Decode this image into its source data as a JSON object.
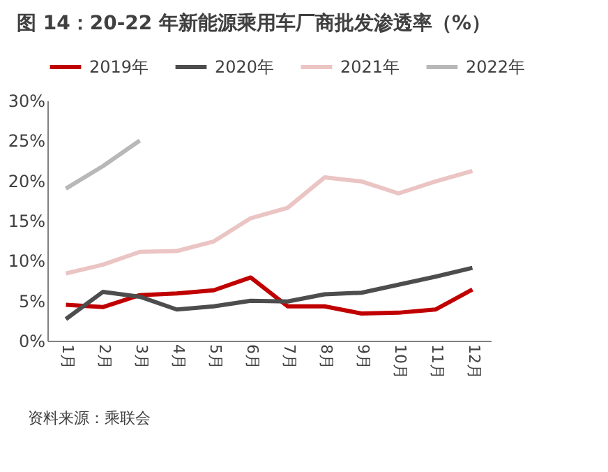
{
  "chart_data": {
    "type": "line",
    "title": "图 14：20-22 年新能源乘用车厂商批发渗透率（%）",
    "categories": [
      "1月",
      "2月",
      "3月",
      "4月",
      "5月",
      "6月",
      "7月",
      "8月",
      "9月",
      "10月",
      "11月",
      "12月"
    ],
    "series": [
      {
        "name": "2019年",
        "color": "#c00000",
        "values": [
          4.5,
          4.2,
          5.7,
          5.9,
          6.3,
          7.9,
          4.3,
          4.3,
          3.4,
          3.5,
          3.9,
          6.4
        ]
      },
      {
        "name": "2020年",
        "color": "#4d4d4d",
        "values": [
          2.7,
          6.1,
          5.5,
          3.9,
          4.3,
          5.0,
          4.9,
          5.8,
          6.0,
          7.0,
          8.0,
          9.1
        ]
      },
      {
        "name": "2021年",
        "color": "#ebc4c4",
        "values": [
          8.4,
          9.5,
          11.1,
          11.2,
          12.4,
          15.3,
          16.6,
          20.4,
          19.9,
          18.4,
          19.9,
          21.2
        ]
      },
      {
        "name": "2022年",
        "color": "#b8b8b8",
        "values": [
          19.0,
          21.8,
          25.0,
          null,
          null,
          null,
          null,
          null,
          null,
          null,
          null,
          null
        ]
      }
    ],
    "ylim": [
      0,
      30
    ],
    "yticks": [
      {
        "value": 0,
        "label": "0%"
      },
      {
        "value": 5,
        "label": "5%"
      },
      {
        "value": 10,
        "label": "10%"
      },
      {
        "value": 15,
        "label": "15%"
      },
      {
        "value": 20,
        "label": "20%"
      },
      {
        "value": 25,
        "label": "25%"
      },
      {
        "value": 30,
        "label": "30%"
      }
    ],
    "grid": false,
    "legend": "top",
    "marker": "none",
    "line_style": "solid",
    "annotations": [
      "资料来源：乘联会"
    ]
  }
}
